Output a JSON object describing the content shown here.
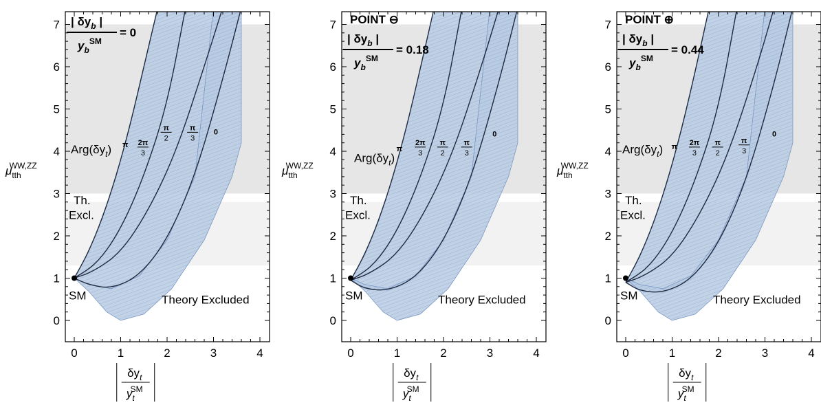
{
  "chart_data": [
    {
      "type": "area",
      "title": "",
      "point_label": "",
      "ratio_numerator": "| δy",
      "ratio_numerator_sub": "b",
      "ratio_numerator_end": " |",
      "ratio_denominator": "y",
      "ratio_denominator_sub": "b",
      "ratio_denominator_sup": "SM",
      "ratio_value": "= 0",
      "xlabel_num": "δy",
      "xlabel_num_sub": "t",
      "xlabel_den": "y",
      "xlabel_den_sub": "t",
      "xlabel_den_sup": "SM",
      "ylabel": "μ",
      "ylabel_sub": "tth",
      "ylabel_sup": "WW,ZZ",
      "xlim": [
        -0.2,
        4.2
      ],
      "ylim": [
        -0.4,
        7.4
      ],
      "x_ticks": [
        "0",
        "1",
        "2",
        "3",
        "4"
      ],
      "y_ticks": [
        "0",
        "1",
        "2",
        "3",
        "4",
        "5",
        "6",
        "7"
      ],
      "bands": [
        {
          "from": 3.0,
          "to": 7.0,
          "shade": "dark"
        },
        {
          "from": 1.3,
          "to": 2.8,
          "shade": "light"
        }
      ],
      "arg_label": "Arg(δy",
      "arg_label_sub": "t",
      "arg_label_end": ")",
      "phase_labels": [
        "π",
        "2π/3",
        "π/2",
        "π/3",
        "0"
      ],
      "phase_xy": [
        [
          1.1,
          4.1
        ],
        [
          1.48,
          4.1
        ],
        [
          1.98,
          4.45
        ],
        [
          2.55,
          4.45
        ],
        [
          3.05,
          4.4
        ]
      ],
      "sm_point": {
        "x": 0,
        "y": 1,
        "label": "SM"
      },
      "th_excl_label": [
        "Th.",
        "Excl."
      ],
      "theory_excluded_label": "Theory Excluded",
      "curves": [
        {
          "name": "",
          "x": [
            0,
            0.3,
            0.6,
            0.9,
            1.2,
            1.5,
            1.8
          ],
          "y": [
            1,
            1.6,
            2.4,
            3.4,
            4.6,
            6.0,
            7.4
          ]
        },
        {
          "name": "",
          "x": [
            0,
            0.5,
            1.0,
            1.5,
            2.0,
            2.4
          ],
          "y": [
            1,
            1.35,
            2.15,
            3.4,
            5.1,
            7.4
          ]
        },
        {
          "name": "",
          "x": [
            0,
            0.4,
            1.0,
            1.6,
            2.2,
            2.8,
            3.2
          ],
          "y": [
            1,
            1.15,
            1.6,
            2.6,
            4.0,
            6.0,
            7.4
          ]
        },
        {
          "name": "",
          "x": [
            0,
            0.3,
            0.8,
            1.4,
            2.0,
            2.6,
            3.2,
            3.6
          ],
          "y": [
            1,
            0.85,
            0.75,
            1.05,
            1.9,
            3.4,
            5.7,
            7.4
          ]
        }
      ]
    },
    {
      "type": "area",
      "title": "",
      "point_label": "POINT ⊖",
      "ratio_numerator": "| δy",
      "ratio_numerator_sub": "b",
      "ratio_numerator_end": " |",
      "ratio_denominator": "y",
      "ratio_denominator_sub": "b",
      "ratio_denominator_sup": "SM",
      "ratio_value": "= 0.18",
      "xlabel_num": "δy",
      "xlabel_num_sub": "t",
      "xlabel_den": "y",
      "xlabel_den_sub": "t",
      "xlabel_den_sup": "SM",
      "ylabel": "μ",
      "ylabel_sub": "tth",
      "ylabel_sup": "WW,ZZ",
      "xlim": [
        -0.2,
        4.2
      ],
      "ylim": [
        -0.4,
        7.4
      ],
      "x_ticks": [
        "0",
        "1",
        "2",
        "3",
        "4"
      ],
      "y_ticks": [
        "0",
        "1",
        "2",
        "3",
        "4",
        "5",
        "6",
        "7"
      ],
      "bands": [
        {
          "from": 3.0,
          "to": 7.0,
          "shade": "dark"
        },
        {
          "from": 1.3,
          "to": 2.8,
          "shade": "light"
        }
      ],
      "arg_label": "Arg(δy",
      "arg_label_sub": "t",
      "arg_label_end": ")",
      "phase_labels": [
        "π",
        "2π/3",
        "π/2",
        "π/3",
        "0"
      ],
      "phase_xy": [
        [
          1.05,
          4.0
        ],
        [
          1.5,
          4.1
        ],
        [
          1.98,
          4.1
        ],
        [
          2.5,
          4.1
        ],
        [
          3.1,
          4.35
        ]
      ],
      "sm_point": {
        "x": 0,
        "y": 1,
        "label": "SM"
      },
      "th_excl_label": [
        "Th.",
        "Excl."
      ],
      "theory_excluded_label": "Theory Excluded",
      "curves": [
        {
          "name": "",
          "x": [
            0,
            0.3,
            0.6,
            0.9,
            1.2,
            1.5,
            1.8
          ],
          "y": [
            0.95,
            1.55,
            2.35,
            3.35,
            4.55,
            5.95,
            7.4
          ]
        },
        {
          "name": "",
          "x": [
            0,
            0.5,
            1.0,
            1.5,
            2.0,
            2.4
          ],
          "y": [
            0.95,
            1.3,
            2.1,
            3.35,
            5.05,
            7.4
          ]
        },
        {
          "name": "",
          "x": [
            0,
            0.4,
            1.0,
            1.6,
            2.2,
            2.8,
            3.2
          ],
          "y": [
            0.95,
            1.1,
            1.55,
            2.55,
            3.95,
            5.95,
            7.4
          ]
        },
        {
          "name": "",
          "x": [
            0,
            0.3,
            0.8,
            1.4,
            2.0,
            2.6,
            3.2,
            3.6
          ],
          "y": [
            0.95,
            0.75,
            0.7,
            1.0,
            1.85,
            3.35,
            5.65,
            7.4
          ]
        }
      ]
    },
    {
      "type": "area",
      "title": "",
      "point_label": "POINT ⊕",
      "ratio_numerator": "| δy",
      "ratio_numerator_sub": "b",
      "ratio_numerator_end": " |",
      "ratio_denominator": "y",
      "ratio_denominator_sub": "b",
      "ratio_denominator_sup": "SM",
      "ratio_value": "= 0.44",
      "xlabel_num": "δy",
      "xlabel_num_sub": "t",
      "xlabel_den": "y",
      "xlabel_den_sub": "t",
      "xlabel_den_sup": "SM",
      "ylabel": "μ",
      "ylabel_sub": "tth",
      "ylabel_sup": "WW,ZZ",
      "xlim": [
        -0.2,
        4.2
      ],
      "ylim": [
        -0.4,
        7.4
      ],
      "x_ticks": [
        "0",
        "1",
        "2",
        "3",
        "4"
      ],
      "y_ticks": [
        "0",
        "1",
        "2",
        "3",
        "4",
        "5",
        "6",
        "7"
      ],
      "bands": [
        {
          "from": 3.0,
          "to": 7.0,
          "shade": "dark"
        },
        {
          "from": 1.3,
          "to": 2.8,
          "shade": "light"
        }
      ],
      "arg_label": "Arg(δy",
      "arg_label_sub": "t",
      "arg_label_end": ")",
      "phase_labels": [
        "π",
        "2π/3",
        "π/2",
        "π/3",
        "0"
      ],
      "phase_xy": [
        [
          1.05,
          4.05
        ],
        [
          1.48,
          4.1
        ],
        [
          1.98,
          4.1
        ],
        [
          2.55,
          4.15
        ],
        [
          3.2,
          4.35
        ]
      ],
      "sm_point": {
        "x": 0,
        "y": 1,
        "label": "SM"
      },
      "th_excl_label": [
        "Th.",
        "Excl."
      ],
      "theory_excluded_label": "Theory Excluded",
      "curves": [
        {
          "name": "",
          "x": [
            0,
            0.3,
            0.6,
            0.9,
            1.2,
            1.5,
            1.8
          ],
          "y": [
            0.9,
            1.5,
            2.3,
            3.3,
            4.5,
            5.9,
            7.4
          ]
        },
        {
          "name": "",
          "x": [
            0,
            0.5,
            1.0,
            1.5,
            2.0,
            2.4
          ],
          "y": [
            0.9,
            1.25,
            2.05,
            3.3,
            5.0,
            7.4
          ]
        },
        {
          "name": "",
          "x": [
            0,
            0.4,
            1.0,
            1.6,
            2.2,
            2.8,
            3.2
          ],
          "y": [
            0.9,
            1.05,
            1.5,
            2.5,
            3.9,
            5.9,
            7.4
          ]
        },
        {
          "name": "",
          "x": [
            0,
            0.3,
            0.8,
            1.4,
            2.0,
            2.6,
            3.2,
            3.6
          ],
          "y": [
            0.9,
            0.7,
            0.65,
            0.95,
            1.8,
            3.3,
            5.6,
            7.4
          ]
        }
      ]
    }
  ],
  "colors": {
    "region_fill": "#b9cbe3",
    "region_stroke": "#6f8fbf",
    "curve": "#1e2a40",
    "band_dark": "#e6e6e6",
    "band_light": "#f2f2f2"
  }
}
